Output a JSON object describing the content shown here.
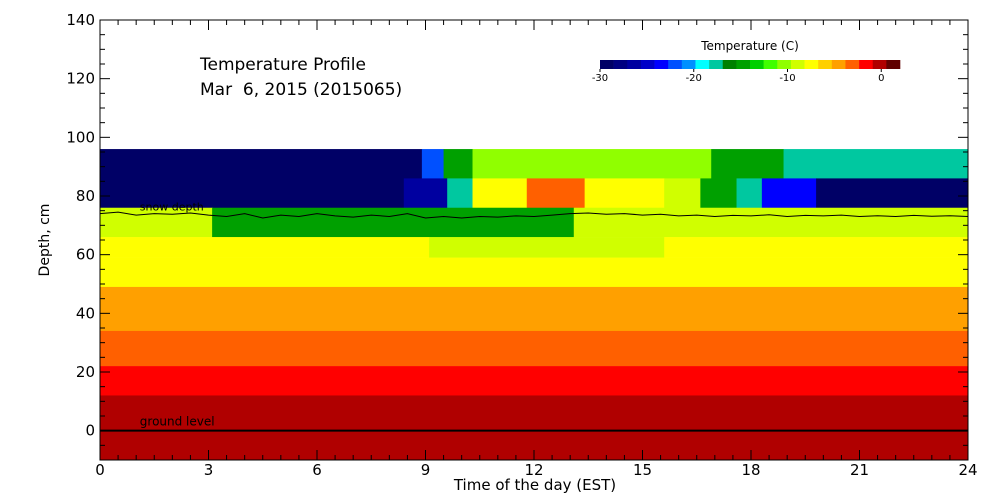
{
  "chart_data": {
    "type": "heatmap",
    "title": "Temperature Profile",
    "subtitle": "Mar  6, 2015 (2015065)",
    "xlabel": "Time of the day (EST)",
    "ylabel": "Depth, cm",
    "xlim": [
      0,
      24
    ],
    "ylim": [
      -10,
      140
    ],
    "x_ticks": [
      "0",
      "3",
      "6",
      "9",
      "12",
      "15",
      "18",
      "21",
      "24"
    ],
    "y_ticks": [
      "0",
      "20",
      "40",
      "60",
      "80",
      "100",
      "120",
      "140"
    ],
    "colorbar": {
      "title": "Temperature (C)",
      "range": [
        -30,
        2
      ],
      "ticks": [
        "-30",
        "-20",
        "-10",
        "0"
      ],
      "colors": [
        "#000066",
        "#000080",
        "#0000a0",
        "#0000c8",
        "#0000ff",
        "#0050ff",
        "#0090ff",
        "#00ffff",
        "#00c8a0",
        "#008000",
        "#00a000",
        "#00d000",
        "#40ff00",
        "#90ff00",
        "#d0ff00",
        "#ffff00",
        "#ffd000",
        "#ffa000",
        "#ff6000",
        "#ff0000",
        "#b00000",
        "#600000"
      ]
    },
    "bands": [
      {
        "bottom": 86,
        "top": 96,
        "segments": [
          [
            0,
            8.9,
            -30
          ],
          [
            8.9,
            9.5,
            -22
          ],
          [
            9.5,
            10.3,
            -15
          ],
          [
            10.3,
            16.9,
            -10
          ],
          [
            16.9,
            18.9,
            -14.5
          ],
          [
            18.9,
            24,
            -18
          ]
        ]
      },
      {
        "bottom": 76,
        "top": 86,
        "segments": [
          [
            0,
            8.4,
            -30
          ],
          [
            8.4,
            9.6,
            -26
          ],
          [
            9.6,
            10.3,
            -18
          ],
          [
            10.3,
            11.8,
            -7
          ],
          [
            11.8,
            13.4,
            -3
          ],
          [
            13.4,
            15.6,
            -7
          ],
          [
            15.6,
            16.6,
            -9
          ],
          [
            16.6,
            17.6,
            -14.5
          ],
          [
            17.6,
            18.3,
            -18
          ],
          [
            18.3,
            19.8,
            -23
          ],
          [
            19.8,
            24,
            -29
          ]
        ]
      },
      {
        "bottom": 66,
        "top": 76,
        "segments": [
          [
            0,
            3.1,
            -9.5
          ],
          [
            3.1,
            13.1,
            -14.5
          ],
          [
            13.1,
            24,
            -9.5
          ]
        ]
      },
      {
        "bottom": 59,
        "top": 66,
        "segments": [
          [
            0,
            9.1,
            -7
          ],
          [
            9.1,
            15.6,
            -9
          ],
          [
            15.6,
            24,
            -7
          ]
        ]
      },
      {
        "bottom": 49,
        "top": 59,
        "segments": [
          [
            0,
            24,
            -7
          ]
        ]
      },
      {
        "bottom": 34,
        "top": 49,
        "segments": [
          [
            0,
            24,
            -5
          ]
        ]
      },
      {
        "bottom": 22,
        "top": 34,
        "segments": [
          [
            0,
            24,
            -3
          ]
        ]
      },
      {
        "bottom": 12,
        "top": 22,
        "segments": [
          [
            0,
            24,
            -1.8
          ]
        ]
      },
      {
        "bottom": 2,
        "top": 12,
        "segments": [
          [
            0,
            24,
            -0.8
          ]
        ]
      },
      {
        "bottom": -3,
        "top": 2,
        "segments": [
          [
            0,
            24,
            -0.3
          ]
        ]
      },
      {
        "bottom": -10,
        "top": -3,
        "segments": [
          [
            0,
            11.4,
            -0.3
          ],
          [
            11.4,
            24,
            0.5
          ]
        ]
      }
    ],
    "snow_depth": {
      "label": "snow depth",
      "x": [
        0,
        0.5,
        1,
        1.5,
        2,
        2.5,
        3,
        3.5,
        4,
        4.5,
        5,
        5.5,
        6,
        6.5,
        7,
        7.5,
        8,
        8.5,
        9,
        9.5,
        10,
        10.5,
        11,
        11.5,
        12,
        12.5,
        13,
        13.5,
        14,
        14.5,
        15,
        15.5,
        16,
        16.5,
        17,
        17.5,
        18,
        18.5,
        19,
        19.5,
        20,
        20.5,
        21,
        21.5,
        22,
        22.5,
        23,
        23.5,
        24
      ],
      "y": [
        74,
        74.5,
        73.5,
        74,
        73.8,
        74.2,
        73.5,
        73,
        74,
        72.5,
        73.5,
        73,
        74,
        73.2,
        72.8,
        73.5,
        73,
        74,
        72.5,
        73,
        72.5,
        73,
        72.8,
        73.2,
        73,
        73.5,
        74,
        74.2,
        73.8,
        74,
        73.5,
        73.8,
        73.2,
        73.5,
        73,
        73.4,
        73.2,
        73.6,
        73,
        73.4,
        73.2,
        73.5,
        73,
        73.3,
        73,
        73.4,
        73.1,
        73.3,
        73
      ]
    },
    "ground_level": {
      "label": "ground level",
      "y": 0
    }
  }
}
